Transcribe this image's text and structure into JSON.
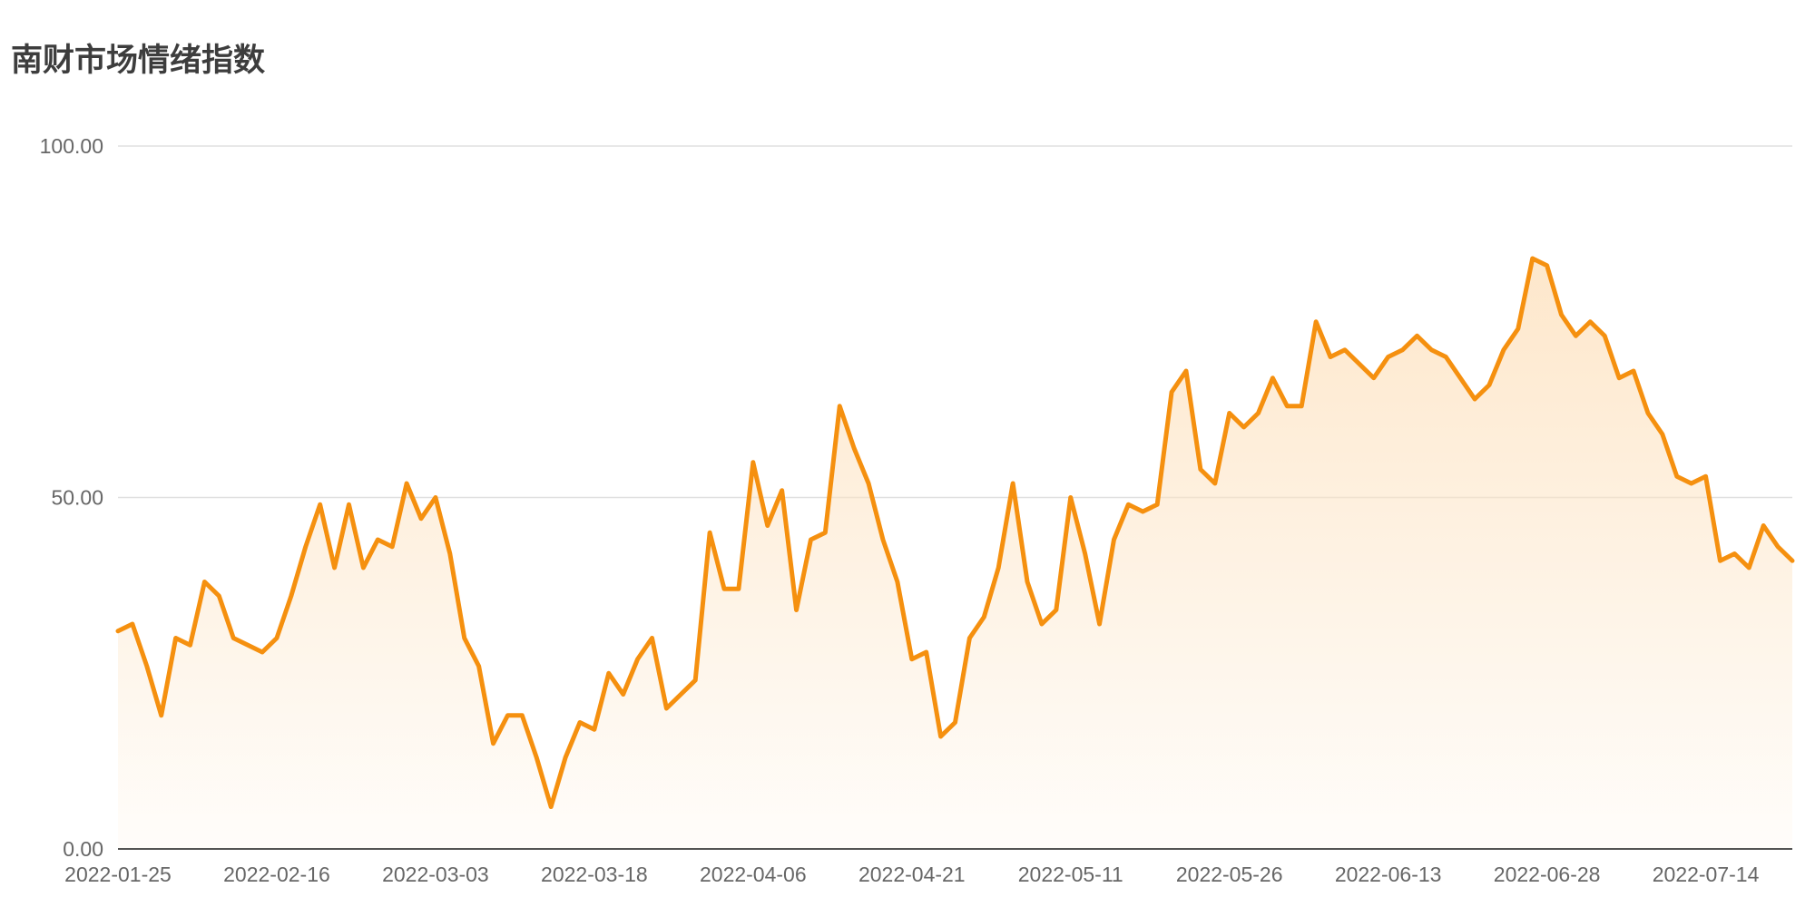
{
  "chart_data": {
    "type": "area",
    "title": "南财市场情绪指数",
    "xlabel": "",
    "ylabel": "",
    "ylim": [
      0,
      100
    ],
    "yticks": [
      "0.00",
      "50.00",
      "100.00"
    ],
    "grid": true,
    "xtick_labels": [
      "2022-01-25",
      "2022-02-16",
      "2022-03-03",
      "2022-03-18",
      "2022-04-06",
      "2022-04-21",
      "2022-05-11",
      "2022-05-26",
      "2022-06-13",
      "2022-06-28",
      "2022-07-14"
    ],
    "xtick_index": [
      0,
      11,
      22,
      33,
      44,
      55,
      66,
      77,
      88,
      99,
      110
    ],
    "line_color": "#f5900f",
    "area_color": "#fde3c2",
    "values": [
      31,
      32,
      26,
      19,
      30,
      29,
      38,
      36,
      30,
      29,
      28,
      30,
      36,
      43,
      49,
      40,
      49,
      40,
      44,
      43,
      52,
      47,
      50,
      42,
      30,
      26,
      15,
      19,
      19,
      13,
      6,
      13,
      18,
      17,
      25,
      22,
      27,
      30,
      20,
      22,
      24,
      45,
      37,
      37,
      55,
      46,
      51,
      34,
      44,
      45,
      63,
      57,
      52,
      44,
      38,
      27,
      28,
      16,
      18,
      30,
      33,
      40,
      52,
      38,
      32,
      34,
      50,
      42,
      32,
      44,
      49,
      48,
      49,
      65,
      68,
      54,
      52,
      62,
      60,
      62,
      67,
      63,
      63,
      75,
      70,
      71,
      69,
      67,
      70,
      71,
      73,
      71,
      70,
      67,
      64,
      66,
      71,
      74,
      84,
      83,
      76,
      73,
      75,
      73,
      67,
      68,
      62,
      59,
      53,
      52,
      53,
      41,
      42,
      40,
      46,
      43,
      41
    ]
  }
}
